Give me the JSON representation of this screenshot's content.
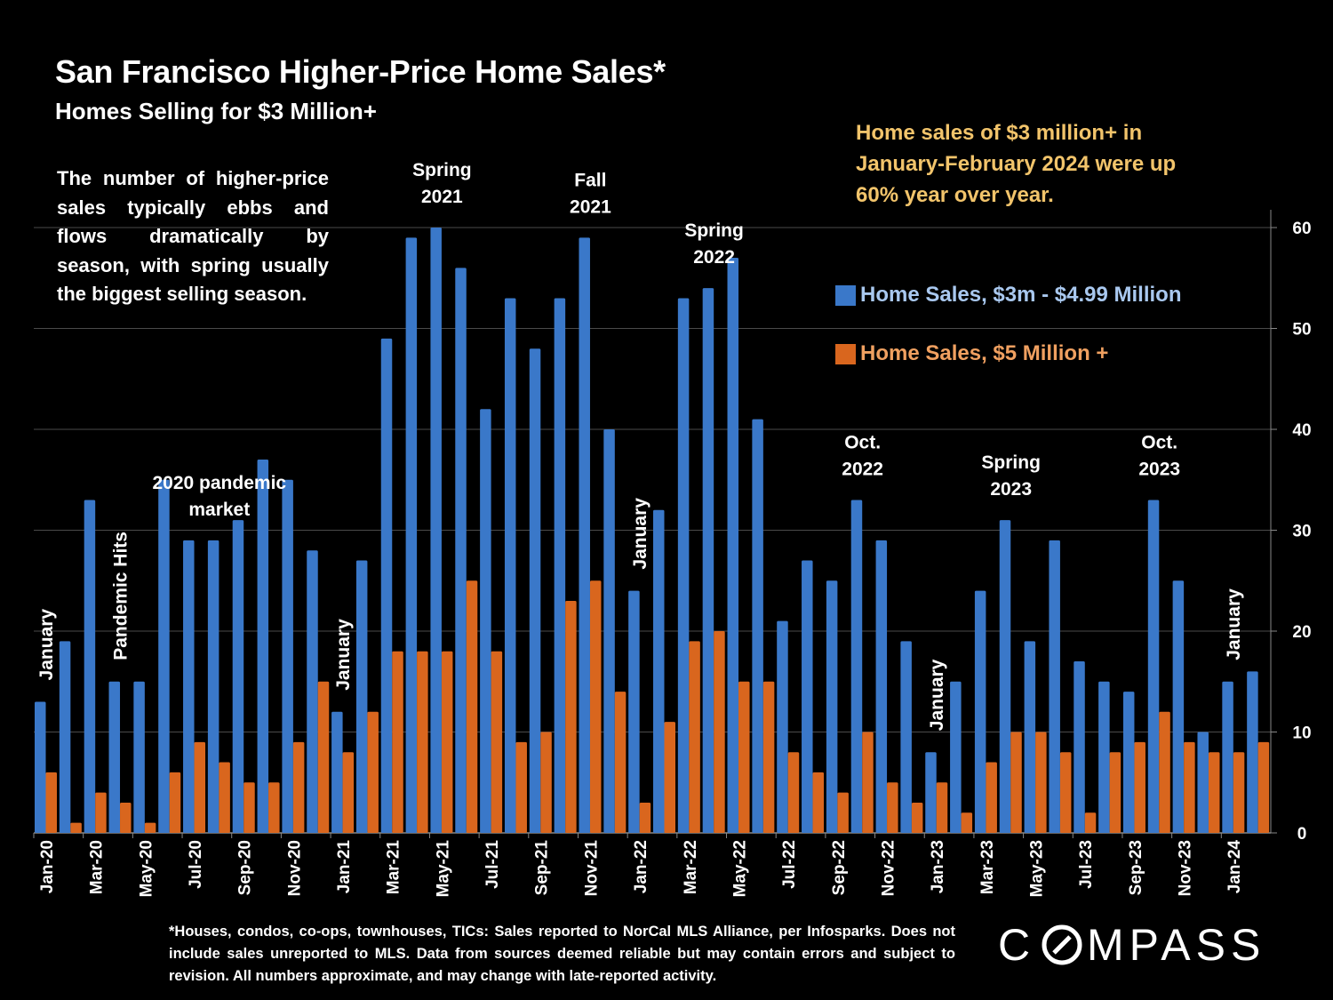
{
  "title": "San Francisco Higher-Price Home Sales*",
  "subtitle": "Homes Selling for $3 Million+",
  "callout": "Home sales of $3 million+ in January-February 2024 were up 60% year over year.",
  "intro": "The number of higher-price sales typically ebbs and flows dramatically by season, with spring usually the biggest selling season.",
  "footnote": "*Houses, condos, co-ops, townhouses, TICs:  Sales reported to NorCal MLS Alliance, per Infosparks. Does not include sales unreported to MLS. Data from sources deemed reliable but may contain errors and subject to revision.  All numbers approximate, and may change with late-reported activity.",
  "logo_text": "COMPASS",
  "colors": {
    "series1": "#3a78c9",
    "series2": "#d9661e",
    "callout": "#f2c46b",
    "legend1_text": "#a9c8ef",
    "legend2_text": "#f0a060"
  },
  "chart_data": {
    "type": "bar",
    "categories": [
      "Jan-20",
      "Feb-20",
      "Mar-20",
      "Apr-20",
      "May-20",
      "Jun-20",
      "Jul-20",
      "Aug-20",
      "Sep-20",
      "Oct-20",
      "Nov-20",
      "Dec-20",
      "Jan-21",
      "Feb-21",
      "Mar-21",
      "Apr-21",
      "May-21",
      "Jun-21",
      "Jul-21",
      "Aug-21",
      "Sep-21",
      "Oct-21",
      "Nov-21",
      "Dec-21",
      "Jan-22",
      "Feb-22",
      "Mar-22",
      "Apr-22",
      "May-22",
      "Jun-22",
      "Jul-22",
      "Aug-22",
      "Sep-22",
      "Oct-22",
      "Nov-22",
      "Dec-22",
      "Jan-23",
      "Feb-23",
      "Mar-23",
      "Apr-23",
      "May-23",
      "Jun-23",
      "Jul-23",
      "Aug-23",
      "Sep-23",
      "Oct-23",
      "Nov-23",
      "Dec-23",
      "Jan-24",
      "Feb-24"
    ],
    "x_tick_labels": [
      "Jan-20",
      "Mar-20",
      "May-20",
      "Jul-20",
      "Sep-20",
      "Nov-20",
      "Jan-21",
      "Mar-21",
      "May-21",
      "Jul-21",
      "Sep-21",
      "Nov-21",
      "Jan-22",
      "Mar-22",
      "May-22",
      "Jul-22",
      "Sep-22",
      "Nov-22",
      "Jan-23",
      "Mar-23",
      "May-23",
      "Jul-23",
      "Sep-23",
      "Nov-23",
      "Jan-24"
    ],
    "series": [
      {
        "name": "Home Sales, $3m - $4.99 Million",
        "values": [
          13,
          19,
          33,
          15,
          15,
          35,
          29,
          29,
          31,
          37,
          35,
          28,
          12,
          27,
          49,
          59,
          60,
          56,
          42,
          53,
          48,
          53,
          59,
          40,
          24,
          32,
          53,
          54,
          57,
          41,
          21,
          27,
          25,
          33,
          29,
          19,
          8,
          15,
          24,
          31,
          19,
          29,
          17,
          15,
          14,
          33,
          25,
          10,
          15,
          16
        ]
      },
      {
        "name": "Home Sales, $5 Million +",
        "values": [
          6,
          1,
          4,
          3,
          1,
          6,
          9,
          7,
          5,
          5,
          9,
          15,
          8,
          12,
          18,
          18,
          18,
          25,
          18,
          9,
          10,
          23,
          25,
          14,
          3,
          11,
          19,
          20,
          15,
          15,
          8,
          6,
          4,
          10,
          5,
          3,
          5,
          2,
          7,
          10,
          10,
          8,
          2,
          8,
          9,
          12,
          9,
          8,
          8,
          9
        ]
      }
    ],
    "ylim": [
      0,
      60
    ],
    "y_ticks": [
      0,
      10,
      20,
      30,
      40,
      50,
      60
    ],
    "y_axis_side": "right",
    "grid": true,
    "legend_placement": "top-right",
    "annotations": [
      {
        "text": [
          "January"
        ],
        "at": "Jan-20",
        "rotated": true
      },
      {
        "text": [
          "Pandemic Hits"
        ],
        "at": "Apr-20",
        "rotated": true
      },
      {
        "text": [
          "2020 pandemic",
          "market"
        ],
        "at": "Aug-20",
        "rotated": false
      },
      {
        "text": [
          "January"
        ],
        "at": "Jan-21",
        "rotated": true
      },
      {
        "text": [
          "Spring",
          "2021"
        ],
        "at": "May-21",
        "rotated": false
      },
      {
        "text": [
          "Fall",
          "2021"
        ],
        "at": "Nov-21",
        "rotated": false
      },
      {
        "text": [
          "January"
        ],
        "at": "Jan-22",
        "rotated": true
      },
      {
        "text": [
          "Spring",
          "2022"
        ],
        "at": "Apr-22",
        "rotated": false
      },
      {
        "text": [
          "Oct.",
          "2022"
        ],
        "at": "Oct-22",
        "rotated": false
      },
      {
        "text": [
          "January"
        ],
        "at": "Jan-23",
        "rotated": true
      },
      {
        "text": [
          "Spring",
          "2023"
        ],
        "at": "Apr-23",
        "rotated": false
      },
      {
        "text": [
          "Oct.",
          "2023"
        ],
        "at": "Oct-23",
        "rotated": false
      },
      {
        "text": [
          "January"
        ],
        "at": "Jan-24",
        "rotated": true
      }
    ]
  }
}
